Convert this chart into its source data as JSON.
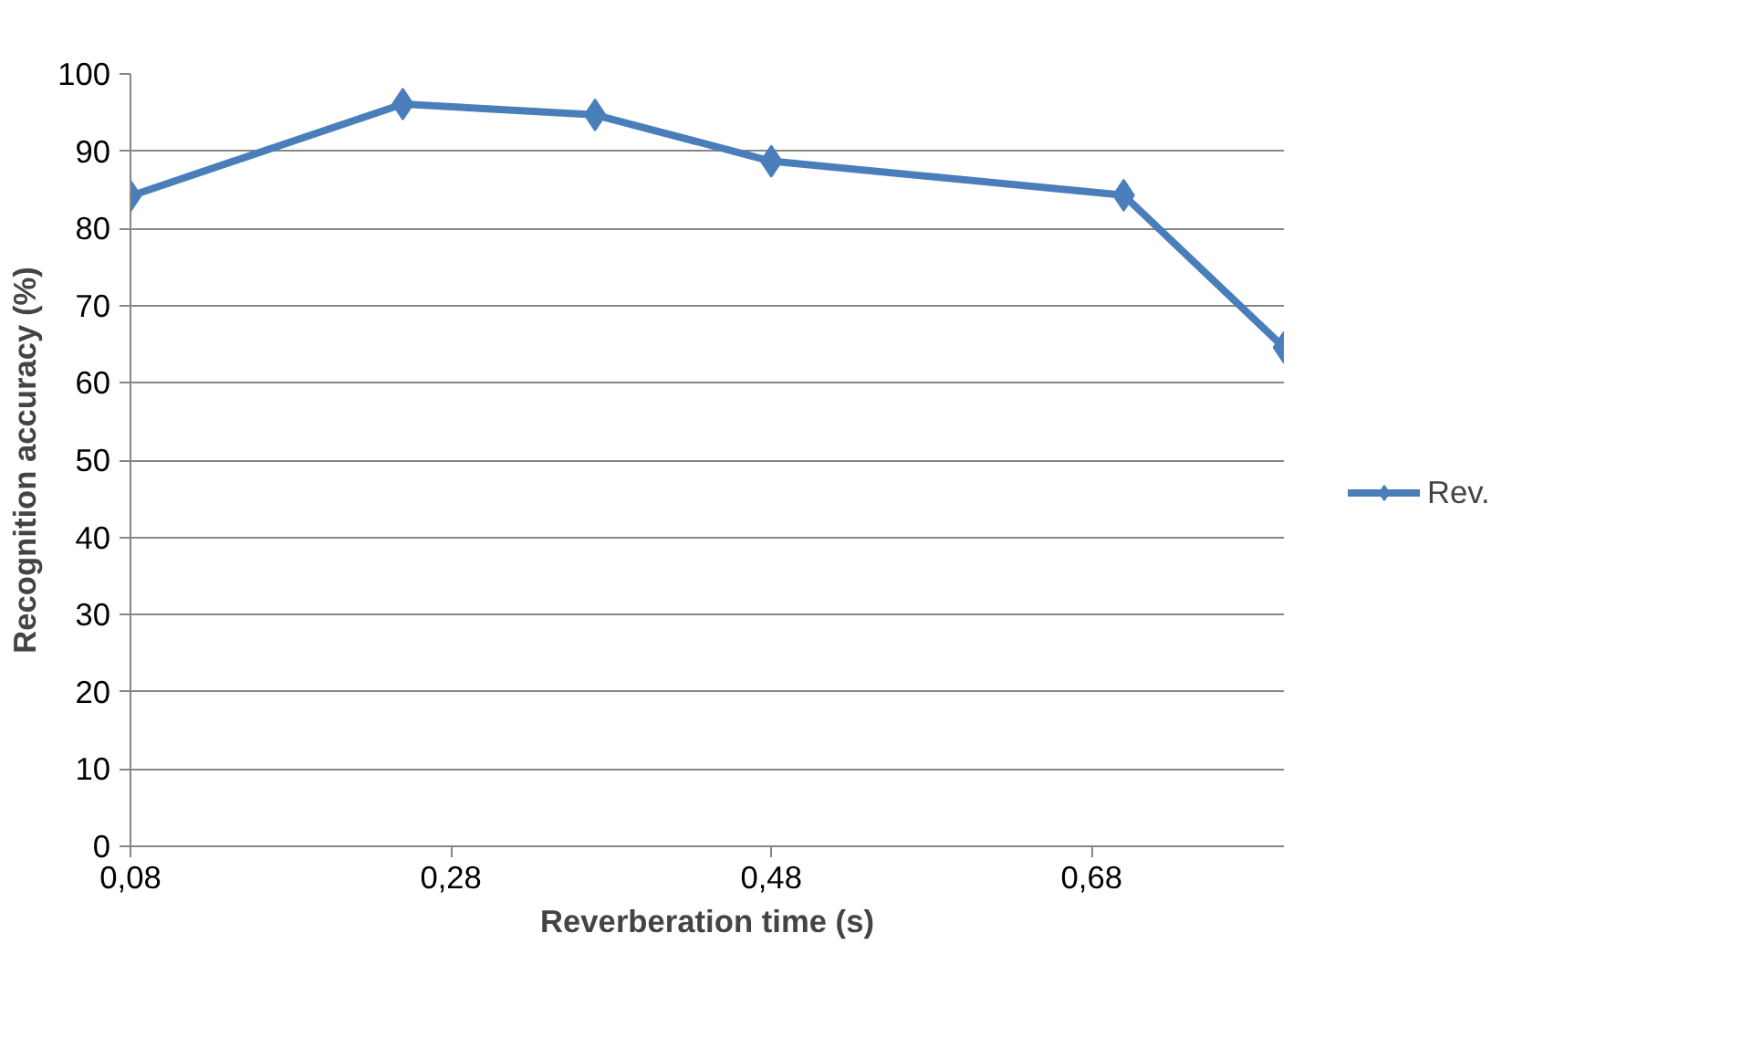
{
  "chart_data": {
    "type": "line",
    "xlabel": "Reverberation time (s)",
    "ylabel": "Recognition accuracy (%)",
    "x": [
      0.08,
      0.25,
      0.37,
      0.48,
      0.7,
      0.8
    ],
    "series": [
      {
        "name": "Rev.",
        "color": "#4a7ebb",
        "values": [
          84.2,
          96.1,
          94.7,
          88.7,
          84.3,
          64.6
        ]
      }
    ],
    "xlim": [
      0.08,
      0.8
    ],
    "xticks": [
      {
        "value": 0.08,
        "label": "0,08"
      },
      {
        "value": 0.28,
        "label": "0,28"
      },
      {
        "value": 0.48,
        "label": "0,48"
      },
      {
        "value": 0.68,
        "label": "0,68"
      }
    ],
    "ylim": [
      0,
      100
    ],
    "yticks": [
      0,
      10,
      20,
      30,
      40,
      50,
      60,
      70,
      80,
      90,
      100
    ],
    "grid": "y",
    "legend": "right",
    "marker": "diamond",
    "line_style": "solid"
  }
}
